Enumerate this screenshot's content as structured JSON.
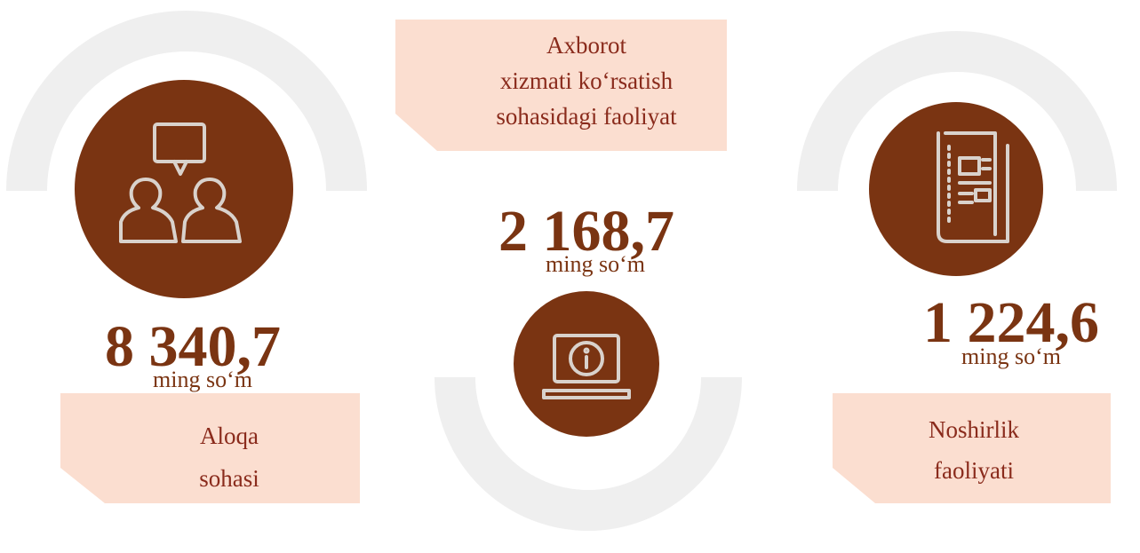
{
  "items": [
    {
      "value": "8 340,7",
      "unit": "ming so‘m",
      "label": [
        "Aloqa",
        "sohasi"
      ]
    },
    {
      "value": "2 168,7",
      "unit": "ming so‘m",
      "label": [
        "Axborot",
        "xizmati ko‘rsatish",
        "sohasidagi faoliyat"
      ]
    },
    {
      "value": "1 224,6",
      "unit": "ming so‘m",
      "label": [
        "Noshirlik",
        "faoliyati"
      ]
    }
  ]
}
